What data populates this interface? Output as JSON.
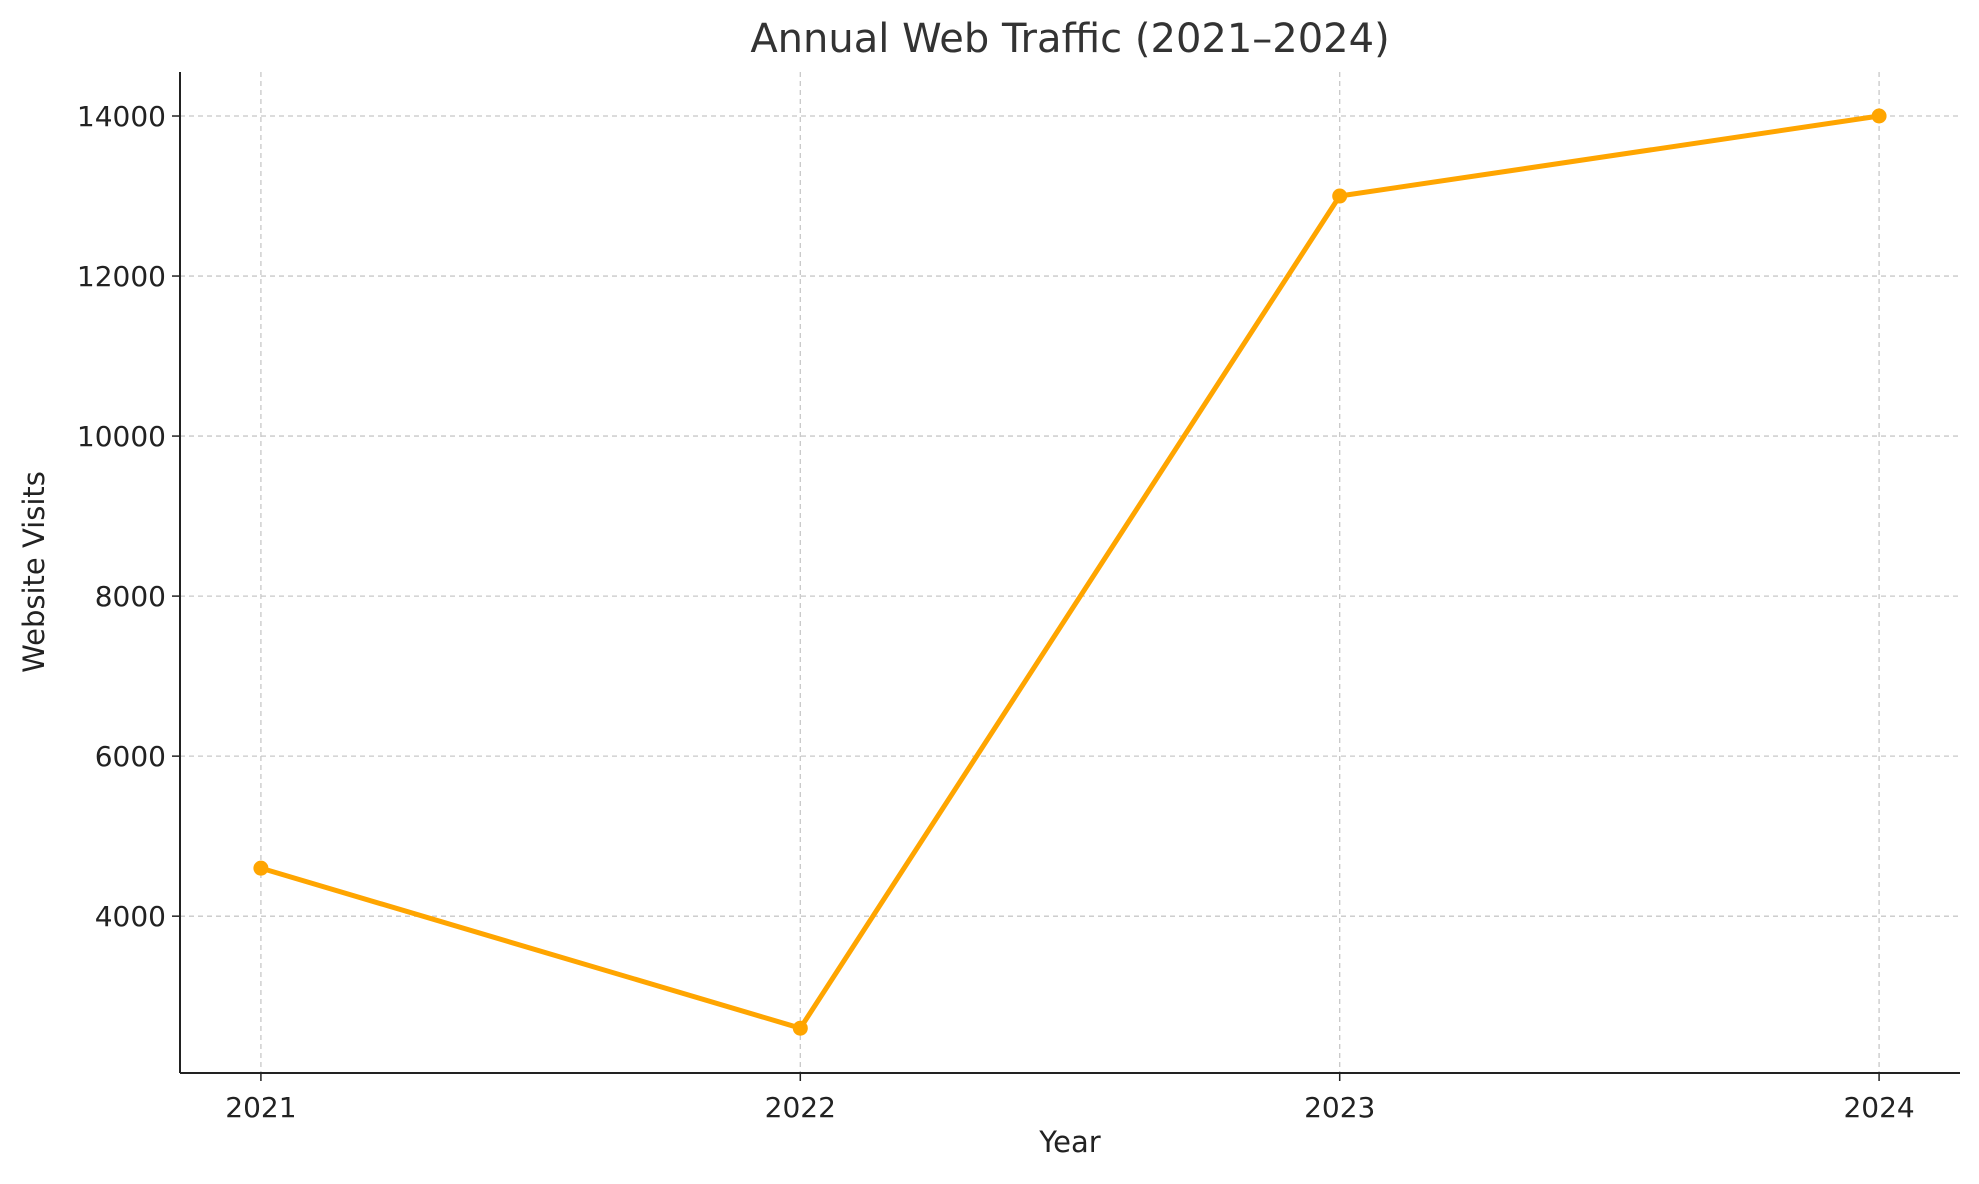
{
  "chart_data": {
    "type": "line",
    "title": "Annual Web Traffic (2021–2024)",
    "xlabel": "Year",
    "ylabel": "Website Visits",
    "x": [
      2021,
      2022,
      2023,
      2024
    ],
    "x_tick_labels": [
      "2021",
      "2022",
      "2023",
      "2024"
    ],
    "series": [
      {
        "name": "Website Visits",
        "values": [
          4600,
          2600,
          13000,
          14000
        ],
        "color": "#FFA500",
        "marker": "circle"
      }
    ],
    "y_ticks": [
      4000,
      6000,
      8000,
      10000,
      12000,
      14000
    ],
    "y_tick_labels": [
      "4000",
      "6000",
      "8000",
      "10000",
      "12000",
      "14000"
    ],
    "xlim": [
      2020.85,
      2024.15
    ],
    "ylim": [
      2040,
      14550
    ],
    "grid": true,
    "legend": "none"
  }
}
